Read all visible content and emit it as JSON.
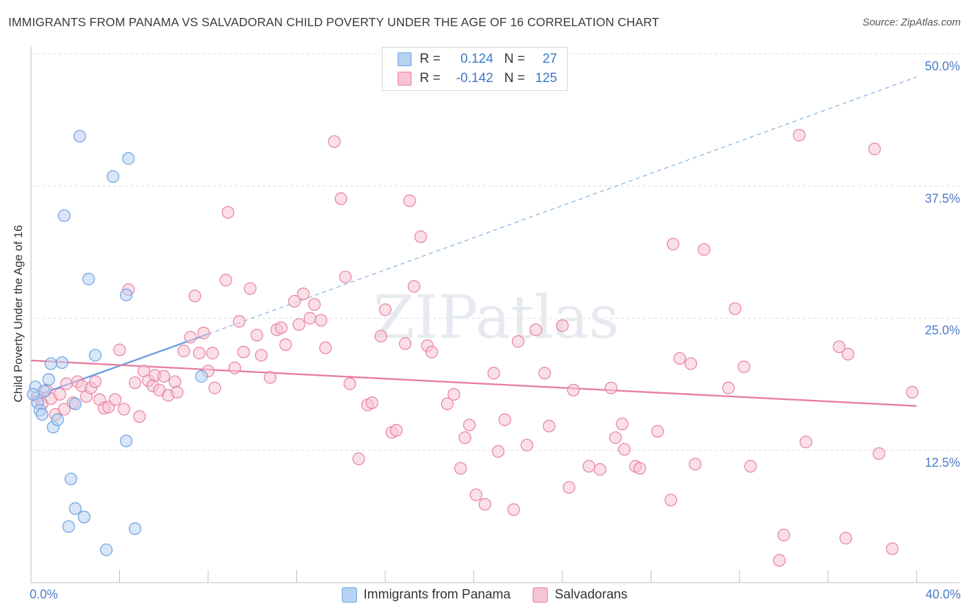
{
  "title": "IMMIGRANTS FROM PANAMA VS SALVADORAN CHILD POVERTY UNDER THE AGE OF 16 CORRELATION CHART",
  "source": "Source: ZipAtlas.com",
  "watermark": "ZIPatlas",
  "legend_top": {
    "rows": [
      {
        "r_label": "R =",
        "r_value": "0.124",
        "n_label": "N =",
        "n_value": "27"
      },
      {
        "r_label": "R =",
        "r_value": "-0.142",
        "n_label": "N =",
        "n_value": "125"
      }
    ]
  },
  "chart_data": {
    "type": "scatter",
    "title": "IMMIGRANTS FROM PANAMA VS SALVADORAN CHILD POVERTY UNDER THE AGE OF 16 CORRELATION CHART",
    "xlabel": "",
    "ylabel": "Child Poverty Under the Age of 16",
    "xlim": [
      0,
      40
    ],
    "ylim": [
      0,
      50
    ],
    "x_tick_labels": [
      "0.0%",
      "40.0%"
    ],
    "y_ticks": [
      12.5,
      25.0,
      37.5,
      50.0
    ],
    "y_tick_labels": [
      "12.5%",
      "25.0%",
      "37.5%",
      "50.0%"
    ],
    "grid": true,
    "series": [
      {
        "name": "Immigrants from Panama",
        "color": "#6a9fe0",
        "fill": "#b8d2f3",
        "trend": {
          "x": [
            0,
            8
          ],
          "y": [
            17.5,
            23.5
          ],
          "dashed_extension_to": [
            40,
            47.8
          ]
        },
        "points": [
          [
            0.2,
            18.5
          ],
          [
            0.3,
            17.0
          ],
          [
            0.4,
            16.3
          ],
          [
            0.6,
            18.1
          ],
          [
            0.5,
            15.9
          ],
          [
            0.8,
            19.2
          ],
          [
            0.9,
            20.7
          ],
          [
            1.0,
            14.7
          ],
          [
            1.2,
            15.4
          ],
          [
            1.4,
            20.8
          ],
          [
            2.0,
            16.9
          ],
          [
            2.2,
            42.2
          ],
          [
            1.5,
            34.7
          ],
          [
            2.6,
            28.7
          ],
          [
            2.9,
            21.5
          ],
          [
            3.7,
            38.4
          ],
          [
            4.4,
            40.1
          ],
          [
            4.3,
            27.2
          ],
          [
            7.7,
            19.5
          ],
          [
            4.3,
            13.4
          ],
          [
            1.8,
            9.8
          ],
          [
            2.0,
            7.0
          ],
          [
            2.4,
            6.2
          ],
          [
            1.7,
            5.3
          ],
          [
            4.7,
            5.1
          ],
          [
            3.4,
            3.1
          ],
          [
            0.1,
            17.8
          ]
        ]
      },
      {
        "name": "Salvadorans",
        "color": "#e87ea1",
        "fill": "#f6c4d4",
        "trend": {
          "x": [
            0,
            40
          ],
          "y": [
            21.0,
            16.7
          ]
        },
        "points": [
          [
            0.3,
            17.6
          ],
          [
            0.5,
            16.9
          ],
          [
            0.7,
            18.2
          ],
          [
            0.9,
            17.4
          ],
          [
            1.1,
            15.9
          ],
          [
            1.3,
            17.8
          ],
          [
            1.5,
            16.4
          ],
          [
            1.6,
            18.8
          ],
          [
            1.9,
            17.0
          ],
          [
            2.1,
            19.0
          ],
          [
            2.3,
            18.6
          ],
          [
            2.5,
            17.6
          ],
          [
            2.7,
            18.4
          ],
          [
            2.9,
            19.0
          ],
          [
            3.1,
            17.3
          ],
          [
            3.3,
            16.5
          ],
          [
            3.5,
            16.6
          ],
          [
            3.8,
            17.3
          ],
          [
            4.0,
            22.0
          ],
          [
            4.2,
            16.4
          ],
          [
            4.4,
            27.7
          ],
          [
            4.7,
            18.9
          ],
          [
            4.9,
            15.7
          ],
          [
            5.1,
            20.0
          ],
          [
            5.3,
            19.1
          ],
          [
            5.5,
            18.6
          ],
          [
            5.6,
            19.6
          ],
          [
            5.8,
            18.2
          ],
          [
            6.0,
            19.5
          ],
          [
            6.2,
            17.7
          ],
          [
            6.5,
            19.0
          ],
          [
            6.6,
            18.0
          ],
          [
            6.9,
            21.9
          ],
          [
            7.2,
            23.2
          ],
          [
            7.4,
            27.1
          ],
          [
            7.6,
            21.7
          ],
          [
            7.8,
            23.6
          ],
          [
            8.0,
            20.0
          ],
          [
            8.3,
            18.4
          ],
          [
            8.2,
            21.7
          ],
          [
            8.8,
            28.6
          ],
          [
            8.9,
            35.0
          ],
          [
            9.2,
            20.3
          ],
          [
            9.4,
            24.7
          ],
          [
            9.6,
            21.8
          ],
          [
            9.9,
            27.8
          ],
          [
            10.2,
            23.4
          ],
          [
            10.4,
            21.5
          ],
          [
            10.8,
            19.4
          ],
          [
            11.1,
            23.9
          ],
          [
            11.3,
            24.1
          ],
          [
            11.5,
            22.5
          ],
          [
            11.9,
            26.6
          ],
          [
            12.1,
            24.4
          ],
          [
            12.3,
            27.3
          ],
          [
            12.6,
            25.0
          ],
          [
            12.8,
            26.3
          ],
          [
            13.1,
            24.8
          ],
          [
            13.3,
            22.2
          ],
          [
            13.7,
            41.7
          ],
          [
            14.0,
            36.3
          ],
          [
            14.2,
            28.9
          ],
          [
            14.4,
            18.8
          ],
          [
            14.8,
            11.7
          ],
          [
            15.2,
            16.8
          ],
          [
            15.4,
            17.0
          ],
          [
            15.8,
            23.3
          ],
          [
            16.0,
            25.8
          ],
          [
            16.3,
            14.2
          ],
          [
            16.5,
            14.4
          ],
          [
            16.9,
            22.6
          ],
          [
            17.1,
            36.1
          ],
          [
            17.3,
            28.0
          ],
          [
            17.6,
            32.7
          ],
          [
            17.9,
            22.4
          ],
          [
            18.1,
            21.8
          ],
          [
            18.8,
            16.9
          ],
          [
            19.1,
            17.8
          ],
          [
            19.4,
            10.8
          ],
          [
            19.6,
            13.7
          ],
          [
            19.8,
            14.9
          ],
          [
            20.1,
            8.3
          ],
          [
            20.5,
            7.4
          ],
          [
            20.9,
            19.8
          ],
          [
            21.1,
            12.4
          ],
          [
            21.4,
            15.4
          ],
          [
            21.8,
            6.9
          ],
          [
            22.0,
            22.8
          ],
          [
            22.4,
            13.0
          ],
          [
            22.8,
            23.9
          ],
          [
            23.2,
            19.8
          ],
          [
            23.4,
            14.8
          ],
          [
            24.0,
            24.3
          ],
          [
            24.3,
            9.0
          ],
          [
            24.5,
            18.2
          ],
          [
            25.2,
            11.0
          ],
          [
            25.7,
            10.7
          ],
          [
            26.2,
            18.4
          ],
          [
            26.4,
            13.7
          ],
          [
            26.7,
            15.0
          ],
          [
            27.3,
            11.0
          ],
          [
            27.5,
            10.8
          ],
          [
            28.3,
            14.3
          ],
          [
            28.9,
            7.8
          ],
          [
            29.3,
            21.2
          ],
          [
            29.8,
            20.7
          ],
          [
            30.4,
            31.5
          ],
          [
            29.0,
            32.0
          ],
          [
            31.5,
            18.4
          ],
          [
            31.8,
            25.9
          ],
          [
            32.2,
            20.4
          ],
          [
            32.5,
            11.0
          ],
          [
            34.0,
            4.5
          ],
          [
            35.0,
            13.3
          ],
          [
            36.9,
            21.6
          ],
          [
            36.8,
            4.2
          ],
          [
            34.7,
            42.3
          ],
          [
            38.1,
            41.0
          ],
          [
            36.5,
            22.3
          ],
          [
            38.3,
            12.2
          ],
          [
            33.8,
            2.1
          ],
          [
            38.9,
            3.2
          ],
          [
            39.8,
            18.0
          ],
          [
            26.8,
            12.6
          ],
          [
            30.0,
            11.2
          ]
        ]
      }
    ]
  },
  "legend_bottom": [
    "Immigrants from Panama",
    "Salvadorans"
  ]
}
